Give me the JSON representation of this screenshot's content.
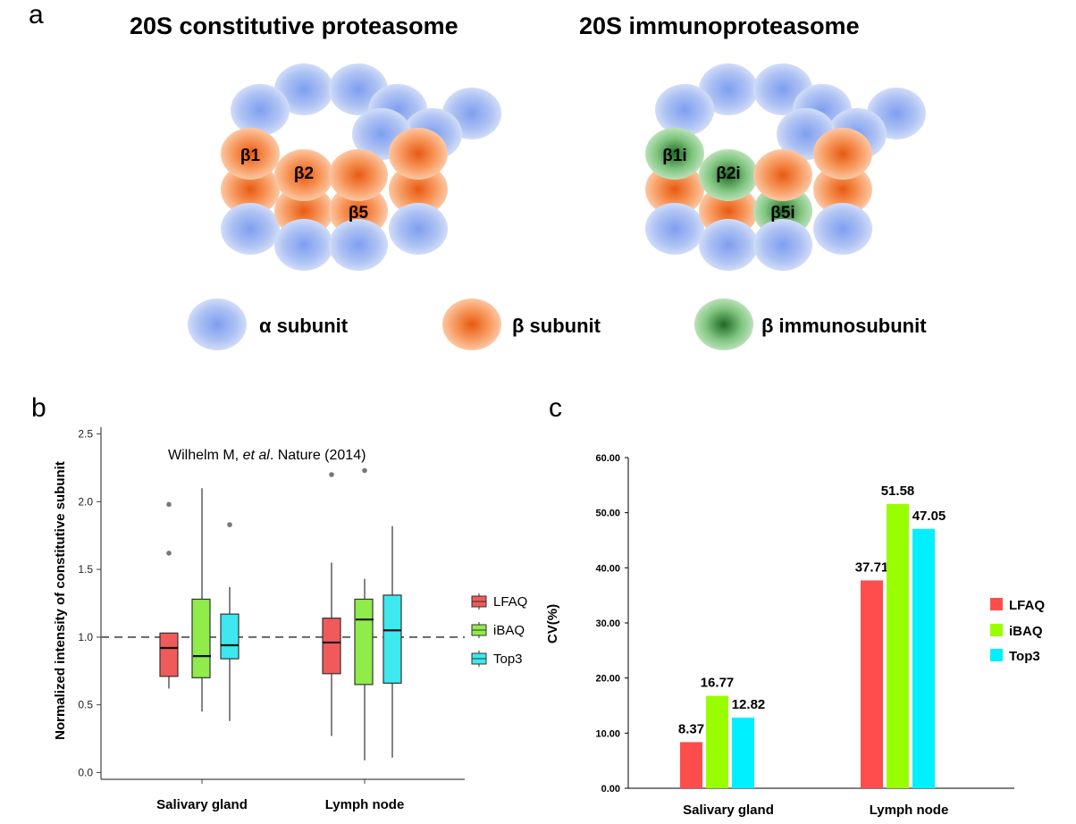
{
  "panel_a": {
    "letter": "a",
    "left_title": "20S constitutive proteasome",
    "right_title": "20S immunoproteasome",
    "left_labels": [
      "β1",
      "β2",
      "β5"
    ],
    "right_labels": [
      "β1i",
      "β2i",
      "β5i"
    ],
    "legend": [
      {
        "label": "α subunit",
        "color": "#8fa8e8"
      },
      {
        "label": "β subunit",
        "color": "#f06a1e"
      },
      {
        "label": "β immunosubunit",
        "color": "#2f7d32"
      }
    ]
  },
  "chart_data": [
    {
      "panel": "b",
      "type": "box",
      "annotation_pre": "Wilhelm M, ",
      "annotation_italic": "et al",
      "annotation_post": ". Nature (2014)",
      "ylabel": "Normalized intensity of constitutive subunit",
      "categories": [
        "Salivary gland",
        "Lymph node"
      ],
      "ylim": [
        -0.05,
        2.55
      ],
      "yticks": [
        "0.0",
        "0.5",
        "1.0",
        "1.5",
        "2.0",
        "2.5"
      ],
      "reference_line": 1.0,
      "series": [
        {
          "name": "LFAQ",
          "color": "#f05a5a",
          "boxes": [
            {
              "min": 0.62,
              "q1": 0.71,
              "median": 0.92,
              "q3": 1.03,
              "max": 1.03,
              "outliers": [
                1.98,
                1.62
              ]
            },
            {
              "min": 0.27,
              "q1": 0.73,
              "median": 0.96,
              "q3": 1.14,
              "max": 1.55,
              "outliers": [
                2.2
              ]
            }
          ]
        },
        {
          "name": "iBAQ",
          "color": "#8fec4a",
          "boxes": [
            {
              "min": 0.45,
              "q1": 0.7,
              "median": 0.86,
              "q3": 1.28,
              "max": 2.1,
              "outliers": []
            },
            {
              "min": 0.09,
              "q1": 0.65,
              "median": 1.13,
              "q3": 1.28,
              "max": 1.43,
              "outliers": [
                2.23
              ]
            }
          ]
        },
        {
          "name": "Top3",
          "color": "#3de8ee",
          "boxes": [
            {
              "min": 0.38,
              "q1": 0.84,
              "median": 0.94,
              "q3": 1.17,
              "max": 1.37,
              "outliers": [
                1.83
              ]
            },
            {
              "min": 0.11,
              "q1": 0.66,
              "median": 1.05,
              "q3": 1.31,
              "max": 1.82,
              "outliers": []
            }
          ]
        }
      ]
    },
    {
      "panel": "c",
      "type": "bar",
      "ylabel": "CV(%)",
      "categories": [
        "Salivary gland",
        "Lymph node"
      ],
      "ylim": [
        0,
        60
      ],
      "yticks": [
        "0.00",
        "10.00",
        "20.00",
        "30.00",
        "40.00",
        "50.00",
        "60.00"
      ],
      "series": [
        {
          "name": "LFAQ",
          "color": "#ff4d4d",
          "values": [
            8.37,
            37.71
          ],
          "labels": [
            "8.37",
            "37.71"
          ]
        },
        {
          "name": "iBAQ",
          "color": "#99ff00",
          "values": [
            16.77,
            51.58
          ],
          "labels": [
            "16.77",
            "51.58"
          ]
        },
        {
          "name": "Top3",
          "color": "#00f0ff",
          "values": [
            12.82,
            47.05
          ],
          "labels": [
            "12.82",
            "47.05"
          ]
        }
      ]
    }
  ],
  "panel_letters": {
    "b": "b",
    "c": "c"
  }
}
